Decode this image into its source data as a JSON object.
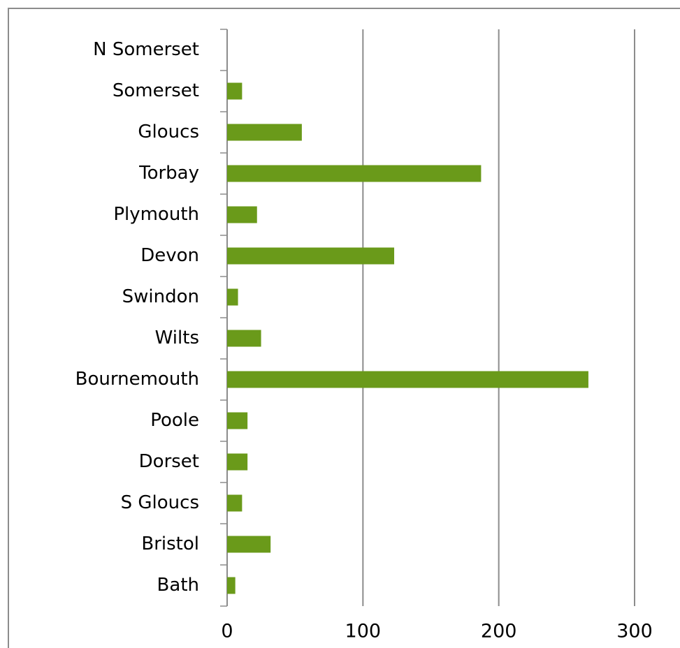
{
  "chart_data": {
    "type": "bar",
    "orientation": "horizontal",
    "categories": [
      "N Somerset",
      "Somerset",
      "Gloucs",
      "Torbay",
      "Plymouth",
      "Devon",
      "Swindon",
      "Wilts",
      "Bournemouth",
      "Poole",
      "Dorset",
      "S Gloucs",
      "Bristol",
      "Bath"
    ],
    "values": [
      0,
      11,
      55,
      187,
      22,
      123,
      8,
      25,
      266,
      15,
      15,
      11,
      32,
      6
    ],
    "color": "#6a9a1a",
    "xlim": [
      0,
      300
    ],
    "xticks": [
      0,
      100,
      200,
      300
    ],
    "grid": true
  }
}
